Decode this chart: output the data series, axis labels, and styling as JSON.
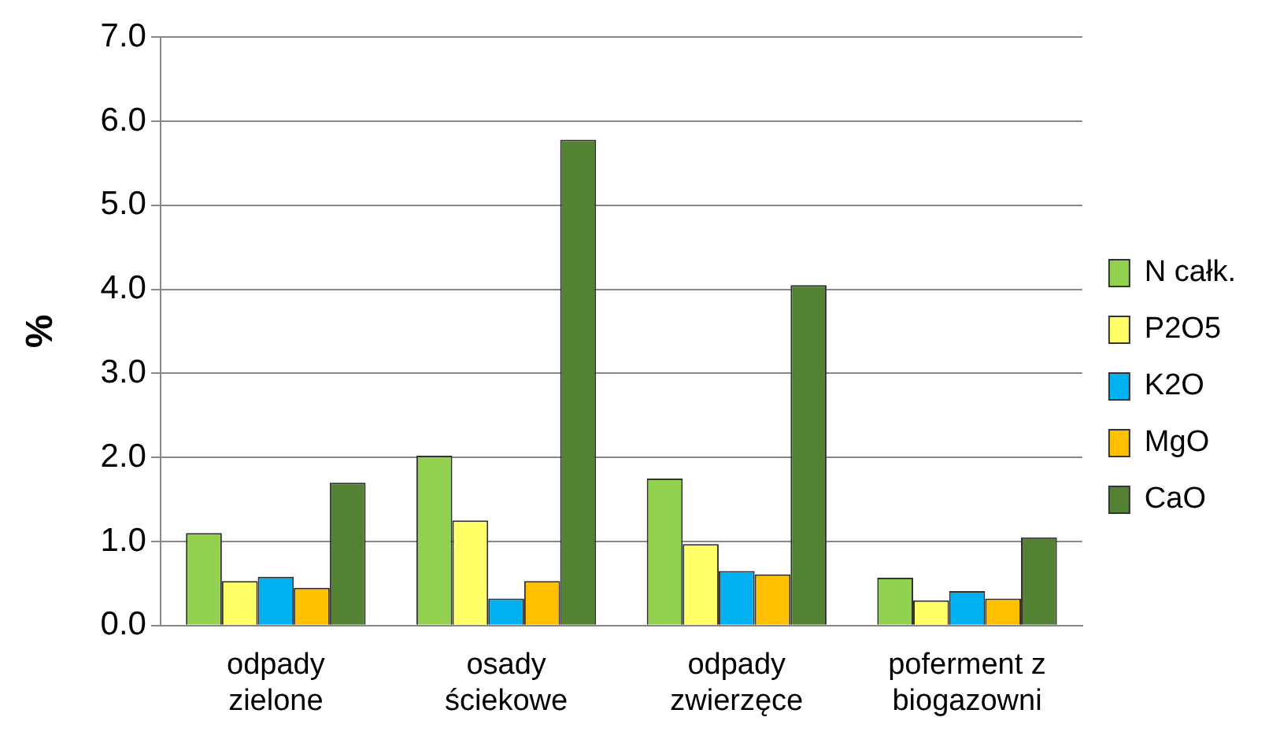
{
  "chart_data": {
    "type": "bar",
    "ylabel": "%",
    "categories": [
      "odpady zielone",
      "osady ściekowe",
      "odpady zwierzęce",
      "poferment z biogazowni"
    ],
    "series": [
      {
        "name": "N całk.",
        "color": "#92d050",
        "values": [
          1.1,
          2.02,
          1.75,
          0.57
        ]
      },
      {
        "name": "P2O5",
        "color": "#ffff66",
        "values": [
          0.53,
          1.25,
          0.97,
          0.3
        ]
      },
      {
        "name": "K2O",
        "color": "#00b0f0",
        "values": [
          0.58,
          0.32,
          0.65,
          0.41
        ]
      },
      {
        "name": "MgO",
        "color": "#ffc000",
        "values": [
          0.45,
          0.53,
          0.61,
          0.32
        ]
      },
      {
        "name": "CaO",
        "color": "#548235",
        "values": [
          1.7,
          5.78,
          4.05,
          1.05
        ]
      }
    ],
    "ylim": [
      0,
      7
    ],
    "yticks": [
      {
        "value": 0,
        "label": "0.0"
      },
      {
        "value": 1,
        "label": "1.0"
      },
      {
        "value": 2,
        "label": "2.0"
      },
      {
        "value": 3,
        "label": "3.0"
      },
      {
        "value": 4,
        "label": "4.0"
      },
      {
        "value": 5,
        "label": "5.0"
      },
      {
        "value": 6,
        "label": "6.0"
      },
      {
        "value": 7,
        "label": "7.0"
      }
    ],
    "grid": "y",
    "legend": "right"
  }
}
